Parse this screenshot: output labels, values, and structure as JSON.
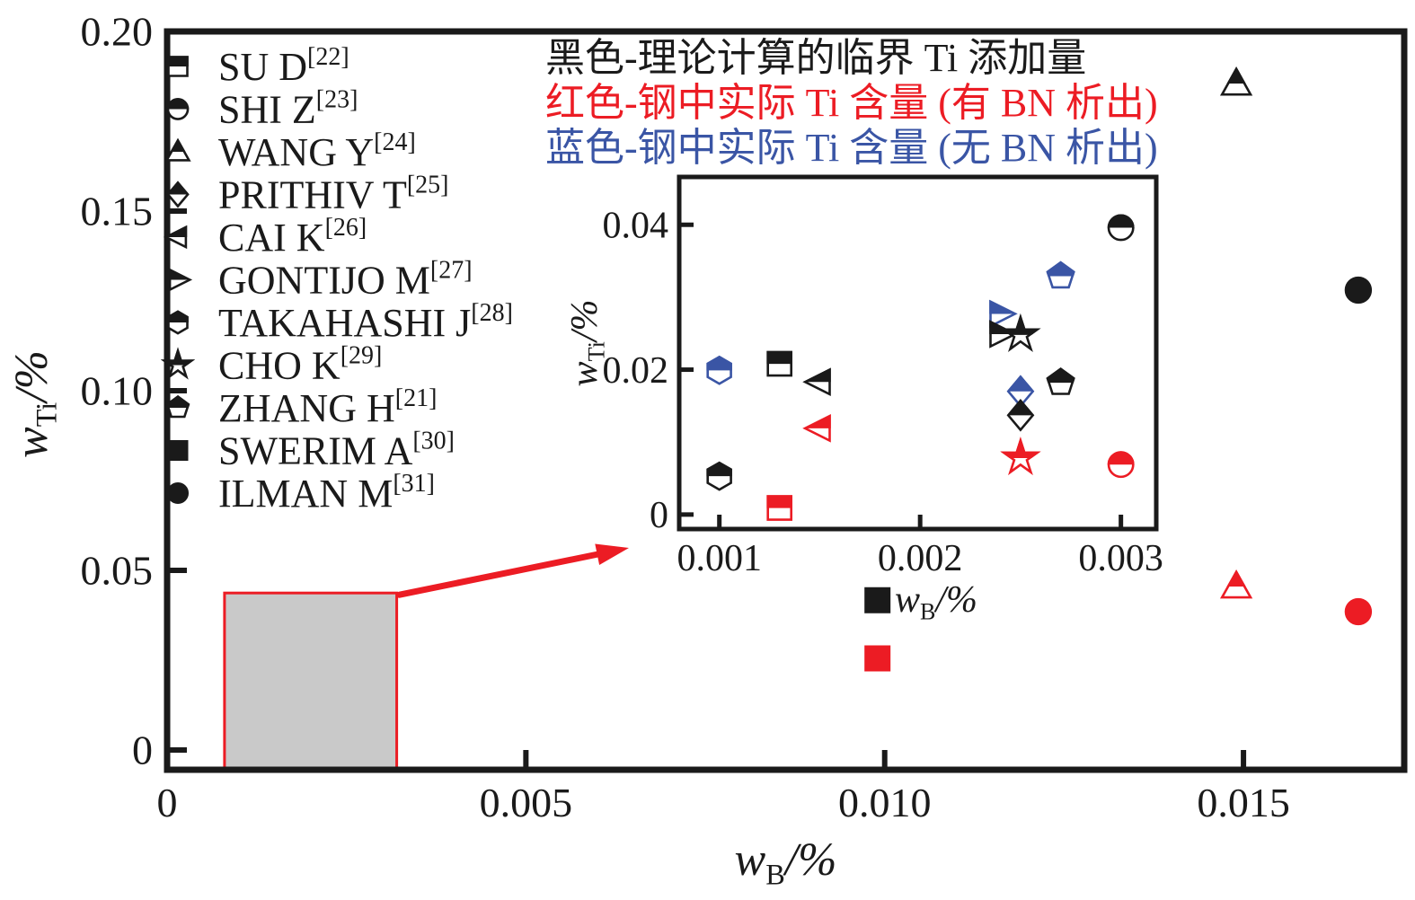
{
  "figure": {
    "background": "#ffffff",
    "colors": {
      "black": "#1a1a1a",
      "red": "#ec1c24",
      "blue": "#3a55a5",
      "zoom_region_fill": "#c9c9c9",
      "zoom_region_border": "#ec1c24",
      "arrow": "#ec1c24"
    }
  },
  "chart_data": {
    "type": "scatter",
    "grid": false,
    "legend_position": "upper-left-inside",
    "main": {
      "xlabel": {
        "base": "w",
        "sub": "B",
        "suffix": "/%"
      },
      "ylabel": {
        "base": "w",
        "sub": "Ti",
        "suffix": "/%"
      },
      "xlim": [
        0,
        0.01724
      ],
      "ylim": [
        -0.0055,
        0.2
      ],
      "xticks": [
        {
          "v": 0,
          "label": "0"
        },
        {
          "v": 0.005,
          "label": "0.005"
        },
        {
          "v": 0.01,
          "label": "0.010"
        },
        {
          "v": 0.015,
          "label": "0.015"
        }
      ],
      "yticks": [
        {
          "v": 0,
          "label": "0"
        },
        {
          "v": 0.05,
          "label": "0.05"
        },
        {
          "v": 0.1,
          "label": "0.10"
        },
        {
          "v": 0.15,
          "label": "0.15"
        },
        {
          "v": 0.2,
          "label": "0.20"
        }
      ],
      "series": [
        {
          "name": "SWERIM A",
          "marker": "square",
          "fill": "solid",
          "color": "black",
          "points": [
            [
              0.0099,
              0.0417
            ]
          ]
        },
        {
          "name": "SWERIM A",
          "marker": "square",
          "fill": "solid",
          "color": "red",
          "points": [
            [
              0.0099,
              0.0255
            ]
          ]
        },
        {
          "name": "WANG Y",
          "marker": "triangle-up",
          "fill": "half",
          "color": "black",
          "points": [
            [
              0.0149,
              0.1855
            ]
          ]
        },
        {
          "name": "WANG Y",
          "marker": "triangle-up",
          "fill": "half",
          "color": "red",
          "points": [
            [
              0.0149,
              0.0455
            ]
          ]
        },
        {
          "name": "ILMAN M",
          "marker": "circle",
          "fill": "solid",
          "color": "black",
          "points": [
            [
              0.0166,
              0.128
            ]
          ]
        },
        {
          "name": "ILMAN M",
          "marker": "circle",
          "fill": "solid",
          "color": "red",
          "points": [
            [
              0.0166,
              0.0385
            ]
          ]
        }
      ]
    },
    "inset": {
      "xlabel": {
        "base": "w",
        "sub": "B",
        "suffix": "/%"
      },
      "ylabel": {
        "base": "w",
        "sub": "Ti",
        "suffix": "/%"
      },
      "xlim": [
        0.0008,
        0.003176
      ],
      "ylim": [
        -0.002,
        0.0466
      ],
      "xticks": [
        {
          "v": 0.001,
          "label": "0.001"
        },
        {
          "v": 0.002,
          "label": "0.002"
        },
        {
          "v": 0.003,
          "label": "0.003"
        }
      ],
      "yticks": [
        {
          "v": 0,
          "label": "0"
        },
        {
          "v": 0.02,
          "label": "0.02"
        },
        {
          "v": 0.04,
          "label": "0.04"
        }
      ],
      "series": [
        {
          "name": "TAKAHASHI J",
          "marker": "hexagon",
          "fill": "half",
          "color": "blue",
          "points": [
            [
              0.001,
              0.0199
            ]
          ]
        },
        {
          "name": "TAKAHASHI J",
          "marker": "hexagon",
          "fill": "half",
          "color": "black",
          "points": [
            [
              0.001,
              0.0053
            ]
          ]
        },
        {
          "name": "SU D",
          "marker": "square",
          "fill": "half",
          "color": "black",
          "points": [
            [
              0.0013,
              0.0208
            ]
          ]
        },
        {
          "name": "SU D",
          "marker": "square",
          "fill": "half",
          "color": "red",
          "points": [
            [
              0.0013,
              0.0009
            ]
          ]
        },
        {
          "name": "CAI K",
          "marker": "triangle-left",
          "fill": "half",
          "color": "black",
          "points": [
            [
              0.0015,
              0.0183
            ]
          ]
        },
        {
          "name": "CAI K",
          "marker": "triangle-left",
          "fill": "half",
          "color": "red",
          "points": [
            [
              0.0015,
              0.0119
            ]
          ]
        },
        {
          "name": "GONTIJO M",
          "marker": "triangle-right",
          "fill": "half",
          "color": "blue",
          "points": [
            [
              0.0024,
              0.0277
            ]
          ]
        },
        {
          "name": "GONTIJO M",
          "marker": "triangle-right",
          "fill": "half",
          "color": "black",
          "points": [
            [
              0.0024,
              0.0249
            ]
          ]
        },
        {
          "name": "CHO K",
          "marker": "star",
          "fill": "half",
          "color": "black",
          "points": [
            [
              0.0025,
              0.0248
            ]
          ]
        },
        {
          "name": "CHO K",
          "marker": "star",
          "fill": "half",
          "color": "red",
          "points": [
            [
              0.0025,
              0.0078
            ]
          ]
        },
        {
          "name": "PRITHIV T",
          "marker": "diamond",
          "fill": "half",
          "color": "blue",
          "points": [
            [
              0.0025,
              0.017
            ]
          ]
        },
        {
          "name": "PRITHIV T",
          "marker": "diamond",
          "fill": "half",
          "color": "black",
          "points": [
            [
              0.0025,
              0.0137
            ]
          ]
        },
        {
          "name": "ZHANG H",
          "marker": "pentagon",
          "fill": "half",
          "color": "blue",
          "points": [
            [
              0.0027,
              0.0329
            ]
          ]
        },
        {
          "name": "ZHANG H",
          "marker": "pentagon",
          "fill": "half",
          "color": "black",
          "points": [
            [
              0.0027,
              0.0182
            ]
          ]
        },
        {
          "name": "SHI Z",
          "marker": "circle",
          "fill": "half",
          "color": "black",
          "points": [
            [
              0.003,
              0.0396
            ]
          ]
        },
        {
          "name": "SHI Z",
          "marker": "circle",
          "fill": "half",
          "color": "red",
          "points": [
            [
              0.003,
              0.0069
            ]
          ]
        }
      ]
    },
    "legend": [
      {
        "label": "SU D",
        "ref": "[22]",
        "marker": "square",
        "fill": "half"
      },
      {
        "label": "SHI Z",
        "ref": "[23]",
        "marker": "circle",
        "fill": "half"
      },
      {
        "label": "WANG Y",
        "ref": "[24]",
        "marker": "triangle-up",
        "fill": "half"
      },
      {
        "label": "PRITHIV T",
        "ref": "[25]",
        "marker": "diamond",
        "fill": "half"
      },
      {
        "label": "CAI K",
        "ref": "[26]",
        "marker": "triangle-left",
        "fill": "half"
      },
      {
        "label": "GONTIJO M",
        "ref": "[27]",
        "marker": "triangle-right",
        "fill": "half"
      },
      {
        "label": "TAKAHASHI J",
        "ref": "[28]",
        "marker": "hexagon",
        "fill": "half"
      },
      {
        "label": "CHO K",
        "ref": "[29]",
        "marker": "star",
        "fill": "half"
      },
      {
        "label": "ZHANG H",
        "ref": "[21]",
        "marker": "pentagon",
        "fill": "half"
      },
      {
        "label": "SWERIM A",
        "ref": "[30]",
        "marker": "square",
        "fill": "solid"
      },
      {
        "label": "ILMAN M",
        "ref": "[31]",
        "marker": "circle",
        "fill": "solid"
      }
    ],
    "annotations": [
      {
        "text": "黑色-理论计算的临界 Ti 添加量",
        "color": "black"
      },
      {
        "text": "红色-钢中实际 Ti 含量 (有 BN 析出)",
        "color": "red"
      },
      {
        "text": "蓝色-钢中实际 Ti 含量 (无 BN 析出)",
        "color": "blue"
      }
    ],
    "zoom_region": {
      "x0": 0.0008,
      "x1": 0.0032,
      "y0": -0.005,
      "y1": 0.0437
    }
  }
}
